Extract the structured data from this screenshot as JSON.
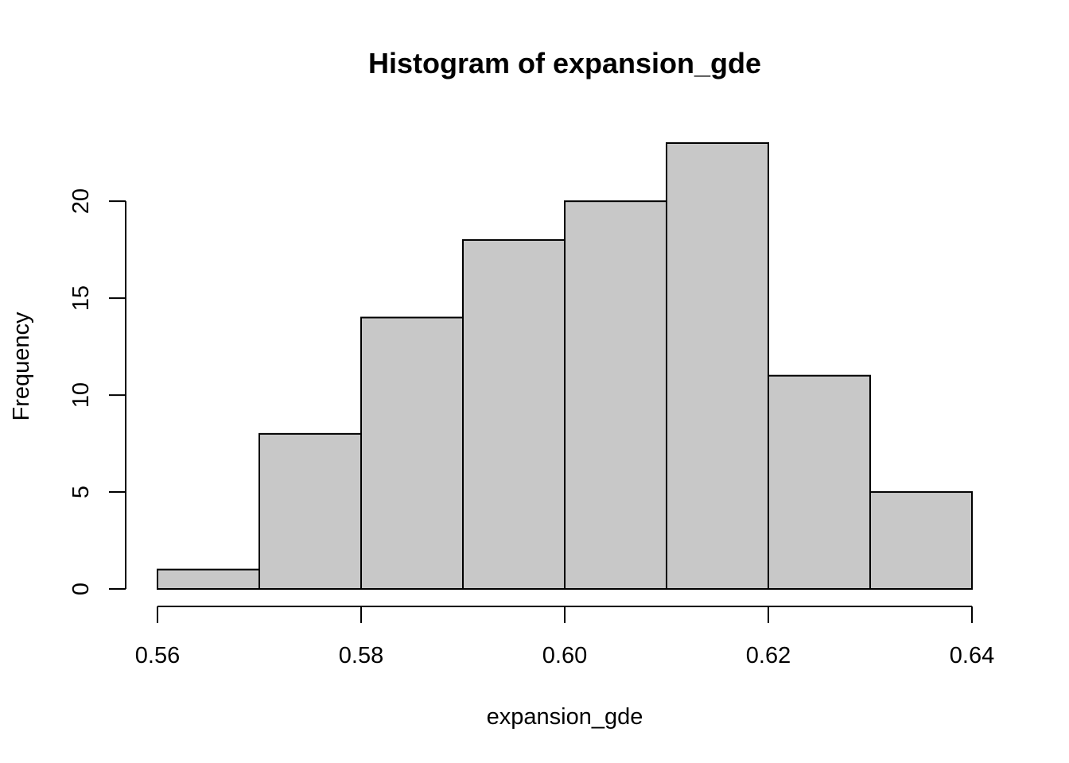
{
  "chart_data": {
    "type": "bar",
    "subtype": "histogram",
    "title": "Histogram of expansion_gde",
    "xlabel": "expansion_gde",
    "ylabel": "Frequency",
    "bins": [
      {
        "start": 0.56,
        "end": 0.57,
        "count": 1
      },
      {
        "start": 0.57,
        "end": 0.58,
        "count": 8
      },
      {
        "start": 0.58,
        "end": 0.59,
        "count": 14
      },
      {
        "start": 0.59,
        "end": 0.6,
        "count": 18
      },
      {
        "start": 0.6,
        "end": 0.61,
        "count": 20
      },
      {
        "start": 0.61,
        "end": 0.62,
        "count": 23
      },
      {
        "start": 0.62,
        "end": 0.63,
        "count": 11
      },
      {
        "start": 0.63,
        "end": 0.64,
        "count": 5
      }
    ],
    "xlim": [
      0.56,
      0.64
    ],
    "ylim": [
      0,
      23
    ],
    "x_ticks": [
      {
        "value": 0.56,
        "label": "0.56"
      },
      {
        "value": 0.58,
        "label": "0.58"
      },
      {
        "value": 0.6,
        "label": "0.60"
      },
      {
        "value": 0.62,
        "label": "0.62"
      },
      {
        "value": 0.64,
        "label": "0.64"
      }
    ],
    "y_ticks": [
      {
        "value": 0,
        "label": "0"
      },
      {
        "value": 5,
        "label": "5"
      },
      {
        "value": 10,
        "label": "10"
      },
      {
        "value": 15,
        "label": "15"
      },
      {
        "value": 20,
        "label": "20"
      }
    ],
    "grid": false,
    "legend": "none",
    "bar_color": "#c8c8c8",
    "edge_color": "#000000"
  }
}
